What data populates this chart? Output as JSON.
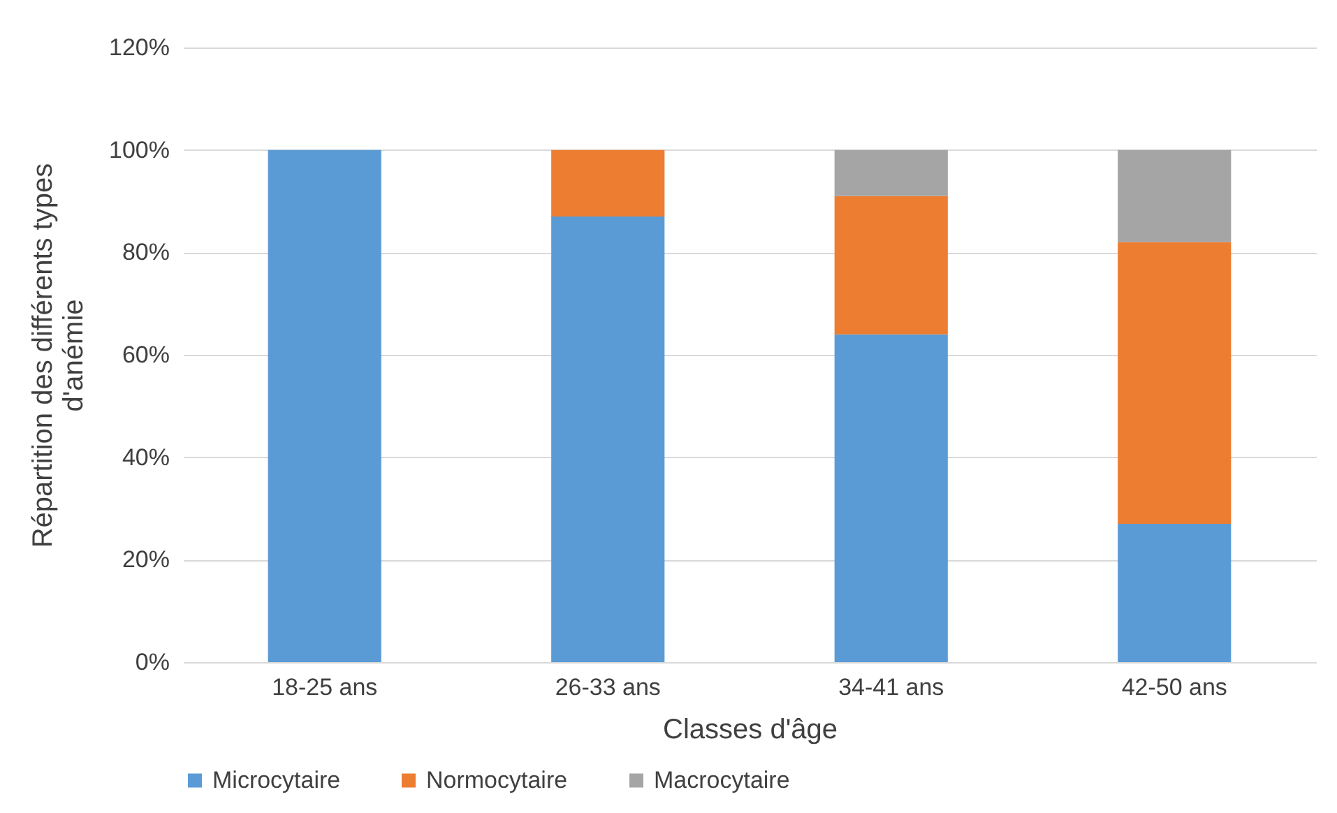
{
  "chart_data": {
    "type": "bar",
    "stacked": true,
    "xlabel": "Classes d'âge",
    "ylabel": "Répartition des différents types d'anémie",
    "categories": [
      "18-25 ans",
      "26-33 ans",
      "34-41 ans",
      "42-50 ans"
    ],
    "series": [
      {
        "name": "Microcytaire",
        "color": "#5b9bd5",
        "values": [
          100,
          87,
          64,
          27
        ]
      },
      {
        "name": "Normocytaire",
        "color": "#ed7d31",
        "values": [
          0,
          13,
          27,
          55
        ]
      },
      {
        "name": "Macrocytaire",
        "color": "#a5a5a5",
        "values": [
          0,
          0,
          9,
          18
        ]
      }
    ],
    "ylim": [
      0,
      120
    ],
    "yticks": [
      {
        "value": 0,
        "label": "0%"
      },
      {
        "value": 20,
        "label": "20%"
      },
      {
        "value": 40,
        "label": "40%"
      },
      {
        "value": 60,
        "label": "60%"
      },
      {
        "value": 80,
        "label": "80%"
      },
      {
        "value": 100,
        "label": "100%"
      },
      {
        "value": 120,
        "label": "120%"
      }
    ],
    "grid": "y",
    "legend": "bottom"
  }
}
